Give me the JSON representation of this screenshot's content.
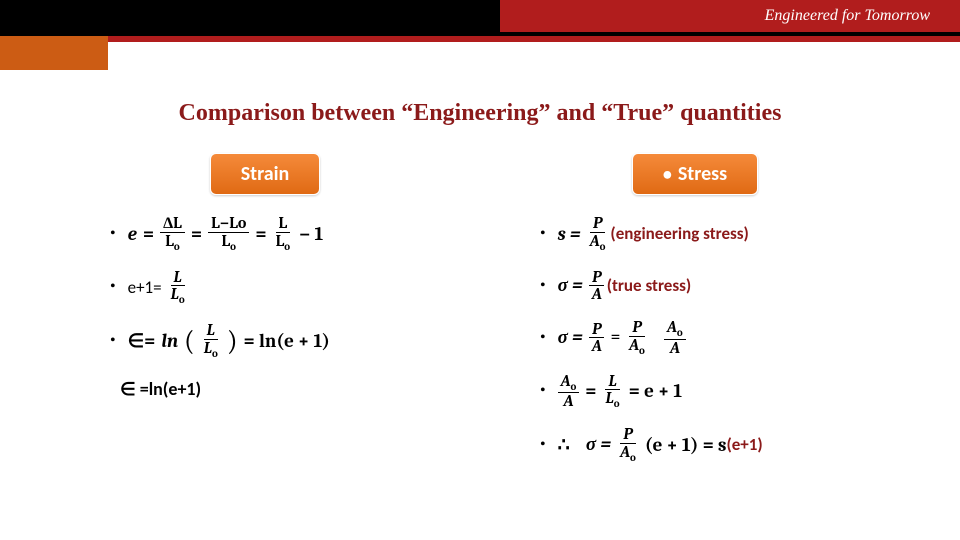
{
  "header": {
    "tagline": "Engineered for Tomorrow"
  },
  "title": "Comparison between “Engineering” and “True” quantities",
  "strain": {
    "label": "Strain",
    "eq1": {
      "lhs": "e",
      "p1_num": "ΔL",
      "p1_den_base": "L",
      "p1_den_sub": "o",
      "p2_num": "L−Lo",
      "p2_den_base": "L",
      "p2_den_sub": "o",
      "p3_num": "L",
      "p3_den_base": "L",
      "p3_den_sub": "o",
      "tail": "− 1"
    },
    "eq2": {
      "lhs": "e+1=",
      "num": "L",
      "den_base": "L",
      "den_sub": "o"
    },
    "eq3": {
      "lhs": "∈=",
      "ln1": "ln",
      "par_num": "L",
      "par_den_base": "L",
      "par_den_sub": "o",
      "rhs": "= ln(e + 1)"
    },
    "final": "∈ =ln(e+1)"
  },
  "stress": {
    "label": "Stress",
    "eq1": {
      "lhs": "s =",
      "num": "P",
      "den_base": "A",
      "den_sub": "o",
      "ann": "(engineering stress)"
    },
    "eq2": {
      "lhs": "σ =",
      "num": "P",
      "den": "A",
      "ann": "(true stress)"
    },
    "eq3": {
      "lhs": "σ =",
      "a_num": "P",
      "a_den": "A",
      "b_num": "P",
      "b_den_base": "A",
      "b_den_sub": "o",
      "c_num_base": "A",
      "c_num_sub": "o",
      "c_den": "A"
    },
    "eq4": {
      "a_num_base": "A",
      "a_num_sub": "o",
      "a_den": "A",
      "b_num": "L",
      "b_den_base": "L",
      "b_den_sub": "o",
      "rhs": "= e + 1"
    },
    "eq5": {
      "pre": "∴",
      "lhs": "σ =",
      "num": "P",
      "den_base": "A",
      "den_sub": "o",
      "mid": "(e + 1) = s",
      "ann": "(e+1)"
    }
  },
  "colors": {
    "accent_red": "#8b1a1a",
    "header_red": "#b11d1d",
    "orange": "#e8731e",
    "black": "#000000",
    "white": "#ffffff"
  }
}
